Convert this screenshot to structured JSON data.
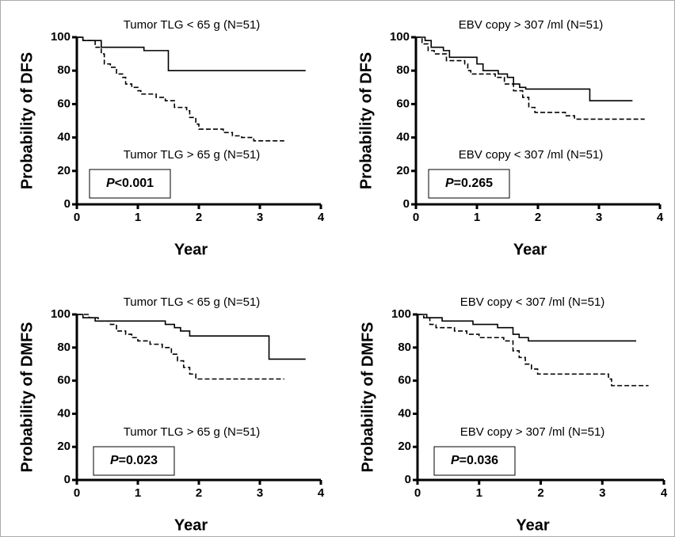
{
  "chart_data": [
    {
      "type": "step",
      "x_label": "Year",
      "y_label": "Probability of DFS",
      "xlim": [
        0,
        4
      ],
      "xticks": [
        0,
        1,
        2,
        3,
        4
      ],
      "ylim": [
        0,
        100
      ],
      "yticks": [
        0,
        20,
        40,
        60,
        80,
        100
      ],
      "p_label": "P",
      "p_value": "<0.001",
      "series": [
        {
          "name": "Tumor TLG < 65 g (N=51)",
          "color": "#000000",
          "line_style": "solid",
          "x": [
            0,
            0.1,
            0.4,
            1.1,
            1.5,
            3.75
          ],
          "values": [
            100,
            98,
            94,
            92,
            80,
            80
          ]
        },
        {
          "name": "Tumor TLG > 65 g (N=51)",
          "color": "#000000",
          "line_style": "dashed",
          "x": [
            0,
            0.1,
            0.3,
            0.4,
            0.45,
            0.55,
            0.65,
            0.75,
            0.8,
            0.9,
            1.0,
            1.05,
            1.3,
            1.45,
            1.6,
            1.8,
            1.85,
            1.95,
            2.0,
            2.4,
            2.55,
            2.7,
            2.9,
            3.4
          ],
          "values": [
            100,
            98,
            94,
            90,
            84,
            82,
            78,
            76,
            72,
            70,
            68,
            66,
            64,
            62,
            58,
            56,
            52,
            48,
            45,
            43,
            41,
            40,
            38,
            38
          ]
        }
      ]
    },
    {
      "type": "step",
      "x_label": "Year",
      "y_label": "Probability of DFS",
      "xlim": [
        0,
        4
      ],
      "xticks": [
        0,
        1,
        2,
        3,
        4
      ],
      "ylim": [
        0,
        100
      ],
      "yticks": [
        0,
        20,
        40,
        60,
        80,
        100
      ],
      "p_label": "P",
      "p_value": "=0.265",
      "series": [
        {
          "name": "EBV copy > 307 /ml (N=51)",
          "color": "#000000",
          "line_style": "solid",
          "x": [
            0,
            0.15,
            0.25,
            0.45,
            0.55,
            1.0,
            1.1,
            1.35,
            1.5,
            1.6,
            1.7,
            1.8,
            2.85,
            3.55
          ],
          "values": [
            100,
            98,
            94,
            92,
            88,
            84,
            80,
            78,
            76,
            72,
            70,
            69,
            62,
            62
          ]
        },
        {
          "name": "EBV copy < 307 /ml (N=51)",
          "color": "#000000",
          "line_style": "dashed",
          "x": [
            0,
            0.1,
            0.2,
            0.3,
            0.5,
            0.8,
            0.85,
            0.9,
            1.3,
            1.45,
            1.6,
            1.75,
            1.85,
            1.95,
            2.45,
            2.6,
            3.75
          ],
          "values": [
            100,
            96,
            92,
            90,
            86,
            84,
            80,
            78,
            76,
            72,
            68,
            64,
            58,
            55,
            53,
            51,
            51
          ]
        }
      ]
    },
    {
      "type": "step",
      "x_label": "Year",
      "y_label": "Probability of DMFS",
      "xlim": [
        0,
        4
      ],
      "xticks": [
        0,
        1,
        2,
        3,
        4
      ],
      "ylim": [
        0,
        100
      ],
      "yticks": [
        0,
        20,
        40,
        60,
        80,
        100
      ],
      "p_label": "P",
      "p_value": "=0.023",
      "series": [
        {
          "name": "Tumor TLG < 65 g (N=51)",
          "color": "#000000",
          "line_style": "solid",
          "x": [
            0,
            0.1,
            0.3,
            1.45,
            1.6,
            1.7,
            1.85,
            3.15,
            3.75
          ],
          "values": [
            100,
            98,
            96,
            94,
            92,
            90,
            87,
            73,
            73
          ]
        },
        {
          "name": "Tumor TLG > 65 g (N=51)",
          "color": "#000000",
          "line_style": "dashed",
          "x": [
            0,
            0.2,
            0.35,
            0.55,
            0.65,
            0.8,
            0.9,
            1.0,
            1.2,
            1.4,
            1.55,
            1.65,
            1.75,
            1.85,
            1.95,
            3.4
          ],
          "values": [
            100,
            98,
            96,
            94,
            90,
            88,
            86,
            84,
            82,
            80,
            76,
            72,
            68,
            64,
            61,
            61
          ]
        }
      ]
    },
    {
      "type": "step",
      "x_label": "Year",
      "y_label": "Probability of DMFS",
      "xlim": [
        0,
        4
      ],
      "xticks": [
        0,
        1,
        2,
        3,
        4
      ],
      "ylim": [
        0,
        100
      ],
      "yticks": [
        0,
        20,
        40,
        60,
        80,
        100
      ],
      "p_label": "P",
      "p_value": "=0.036",
      "series": [
        {
          "name": "EBV copy < 307 /ml (N=51)",
          "color": "#000000",
          "line_style": "solid",
          "x": [
            0,
            0.15,
            0.4,
            0.9,
            1.3,
            1.55,
            1.65,
            1.8,
            3.55
          ],
          "values": [
            100,
            98,
            96,
            94,
            92,
            88,
            86,
            84,
            84
          ]
        },
        {
          "name": "EBV copy > 307 /ml (N=51)",
          "color": "#000000",
          "line_style": "dashed",
          "x": [
            0,
            0.1,
            0.2,
            0.3,
            0.6,
            0.8,
            1.0,
            1.4,
            1.55,
            1.65,
            1.75,
            1.85,
            1.95,
            3.1,
            3.15,
            3.75
          ],
          "values": [
            100,
            98,
            94,
            92,
            90,
            88,
            86,
            84,
            78,
            74,
            70,
            67,
            64,
            61,
            57,
            57
          ]
        }
      ]
    }
  ]
}
